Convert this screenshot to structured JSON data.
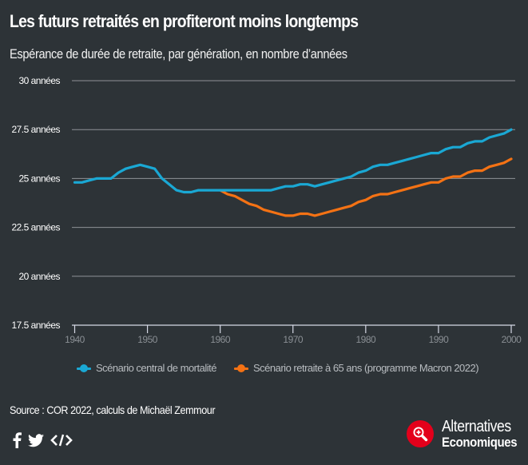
{
  "header": {
    "title": "Les futurs retraités en profiteront moins longtemps",
    "subtitle": "Espérance de durée de retraite, par génération, en nombre d’années"
  },
  "chart_data": {
    "type": "line",
    "title": "Les futurs retraités en profiteront moins longtemps",
    "subtitle": "Espérance de durée de retraite, par génération, en nombre d’années",
    "xlabel": "",
    "ylabel": "",
    "xlim": [
      1940,
      2001
    ],
    "ylim": [
      17.5,
      30
    ],
    "grid": true,
    "legend_position": "bottom",
    "x_ticks": [
      1940,
      1950,
      1960,
      1970,
      1980,
      1990,
      2000
    ],
    "x_tick_labels": [
      "1940",
      "1950",
      "1960",
      "1970",
      "1980",
      "1990",
      "2000"
    ],
    "y_ticks": [
      17.5,
      20,
      22.5,
      25,
      27.5,
      30
    ],
    "y_tick_labels": [
      "17.5 années",
      "20 années",
      "22.5 années",
      "25 années",
      "27.5 années",
      "30 années"
    ],
    "series": [
      {
        "name": "Scénario central de mortalité",
        "color": "#1aa8d4",
        "x": [
          1940,
          1941,
          1942,
          1943,
          1944,
          1945,
          1946,
          1947,
          1948,
          1949,
          1950,
          1951,
          1952,
          1953,
          1954,
          1955,
          1956,
          1957,
          1958,
          1959,
          1960,
          1961,
          1962,
          1963,
          1964,
          1965,
          1966,
          1967,
          1968,
          1969,
          1970,
          1971,
          1972,
          1973,
          1974,
          1975,
          1976,
          1977,
          1978,
          1979,
          1980,
          1981,
          1982,
          1983,
          1984,
          1985,
          1986,
          1987,
          1988,
          1989,
          1990,
          1991,
          1992,
          1993,
          1994,
          1995,
          1996,
          1997,
          1998,
          1999,
          2000
        ],
        "values": [
          24.8,
          24.8,
          24.9,
          25.0,
          25.0,
          25.0,
          25.3,
          25.5,
          25.6,
          25.7,
          25.6,
          25.5,
          25.0,
          24.7,
          24.4,
          24.3,
          24.3,
          24.4,
          24.4,
          24.4,
          24.4,
          24.4,
          24.4,
          24.4,
          24.4,
          24.4,
          24.4,
          24.4,
          24.5,
          24.6,
          24.6,
          24.7,
          24.7,
          24.6,
          24.7,
          24.8,
          24.9,
          25.0,
          25.1,
          25.3,
          25.4,
          25.6,
          25.7,
          25.7,
          25.8,
          25.9,
          26.0,
          26.1,
          26.2,
          26.3,
          26.3,
          26.5,
          26.6,
          26.6,
          26.8,
          26.9,
          26.9,
          27.1,
          27.2,
          27.3,
          27.5
        ]
      },
      {
        "name": "Scénario retraite à 65 ans (programme Macron 2022)",
        "color": "#f47214",
        "x": [
          1960,
          1961,
          1962,
          1963,
          1964,
          1965,
          1966,
          1967,
          1968,
          1969,
          1970,
          1971,
          1972,
          1973,
          1974,
          1975,
          1976,
          1977,
          1978,
          1979,
          1980,
          1981,
          1982,
          1983,
          1984,
          1985,
          1986,
          1987,
          1988,
          1989,
          1990,
          1991,
          1992,
          1993,
          1994,
          1995,
          1996,
          1997,
          1998,
          1999,
          2000
        ],
        "values": [
          24.4,
          24.2,
          24.1,
          23.9,
          23.7,
          23.6,
          23.4,
          23.3,
          23.2,
          23.1,
          23.1,
          23.2,
          23.2,
          23.1,
          23.2,
          23.3,
          23.4,
          23.5,
          23.6,
          23.8,
          23.9,
          24.1,
          24.2,
          24.2,
          24.3,
          24.4,
          24.5,
          24.6,
          24.7,
          24.8,
          24.8,
          25.0,
          25.1,
          25.1,
          25.3,
          25.4,
          25.4,
          25.6,
          25.7,
          25.8,
          26.0
        ]
      }
    ]
  },
  "legend": {
    "items": [
      {
        "label": "Scénario central de mortalité",
        "color": "#1aa8d4"
      },
      {
        "label": "Scénario retraite à 65 ans (programme Macron 2022)",
        "color": "#f47214"
      }
    ]
  },
  "footer": {
    "source": "Source : COR 2022, calculs de Michaël Zemmour",
    "share_icons": [
      "facebook-icon",
      "twitter-icon",
      "embed-code-icon"
    ],
    "logo_line1": "Alternatives",
    "logo_line2": "Economiques"
  }
}
